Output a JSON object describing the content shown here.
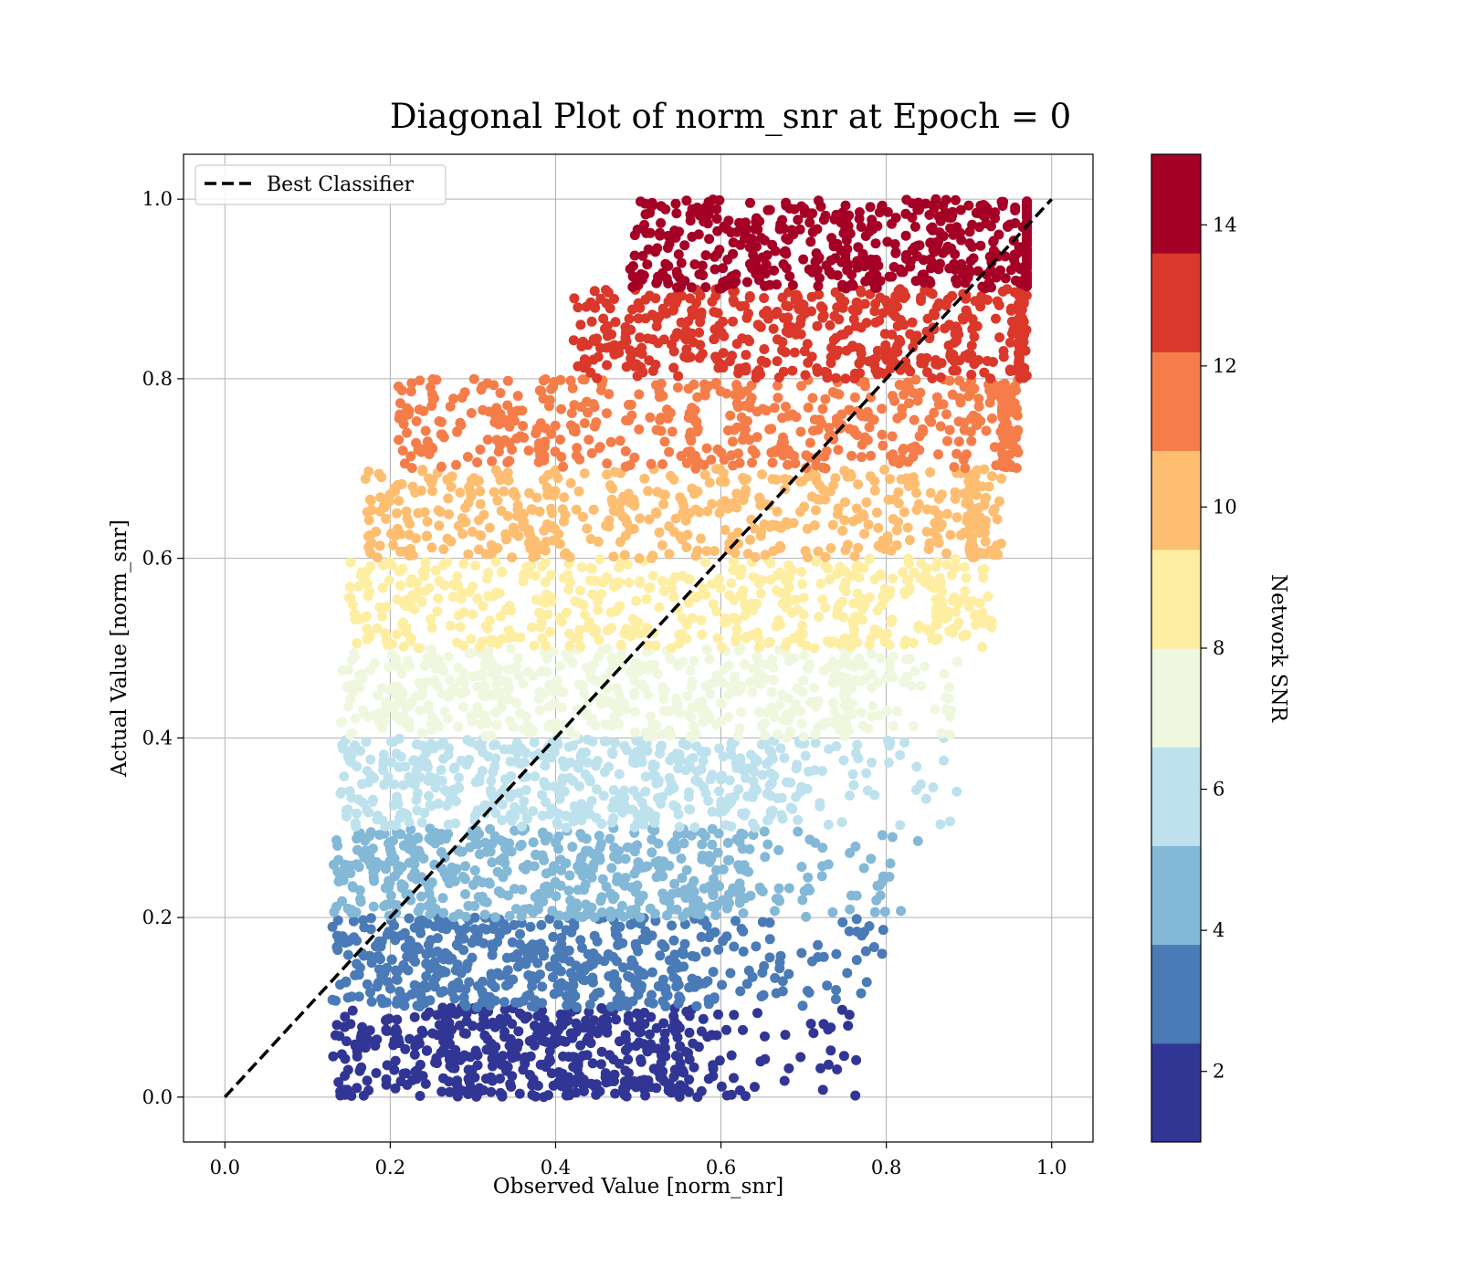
{
  "chart_data": {
    "type": "scatter",
    "title": "Diagonal Plot of norm_snr at Epoch = 0",
    "xlabel": "Observed Value [norm_snr]",
    "ylabel": "Actual Value [norm_snr]",
    "xlim": [
      -0.05,
      1.05
    ],
    "ylim": [
      -0.05,
      1.05
    ],
    "xticks": [
      "0.0",
      "0.2",
      "0.4",
      "0.6",
      "0.8",
      "1.0"
    ],
    "yticks": [
      "0.0",
      "0.2",
      "0.4",
      "0.6",
      "0.8",
      "1.0"
    ],
    "grid": true,
    "legend": {
      "position": "top-left",
      "entries": [
        {
          "label": "Best Classifier",
          "style": "black dashed line"
        }
      ]
    },
    "reference_line": {
      "label": "Best Classifier",
      "x": [
        0.0,
        1.0
      ],
      "y": [
        0.0,
        1.0
      ],
      "color": "#000000",
      "dash": "dashed"
    },
    "colorbar": {
      "label": "Network SNR",
      "range": [
        1,
        15
      ],
      "ticks": [
        "2",
        "4",
        "6",
        "8",
        "10",
        "12",
        "14"
      ],
      "colormap": "RdYlBu_r (10 levels)",
      "colors": [
        "#313695",
        "#4a7bb7",
        "#84b8d7",
        "#bee2ed",
        "#eff7de",
        "#fdeea2",
        "#fdbe71",
        "#f57d4a",
        "#da382b",
        "#a50026"
      ]
    },
    "series_summary": [
      {
        "snr_band": "1-2.4",
        "color": "#313695",
        "actual_range": [
          0.0,
          0.1
        ],
        "observed_core": [
          0.16,
          0.55
        ],
        "observed_scatter_max": 0.77
      },
      {
        "snr_band": "2.4-3.8",
        "color": "#4a7bb7",
        "actual_range": [
          0.1,
          0.2
        ],
        "observed_core": [
          0.16,
          0.58
        ],
        "observed_scatter_max": 0.81
      },
      {
        "snr_band": "3.8-5.2",
        "color": "#84b8d7",
        "actual_range": [
          0.2,
          0.3
        ],
        "observed_core": [
          0.16,
          0.62
        ],
        "observed_scatter_max": 0.84
      },
      {
        "snr_band": "5.2-6.6",
        "color": "#bee2ed",
        "actual_range": [
          0.3,
          0.4
        ],
        "observed_core": [
          0.17,
          0.66
        ],
        "observed_scatter_max": 0.9
      },
      {
        "snr_band": "6.6-8.0",
        "color": "#eff7de",
        "actual_range": [
          0.4,
          0.5
        ],
        "observed_core": [
          0.17,
          0.75
        ],
        "observed_scatter_max": 0.89
      },
      {
        "snr_band": "8.0-9.4",
        "color": "#fdeea2",
        "actual_range": [
          0.5,
          0.6
        ],
        "observed_core": [
          0.18,
          0.86
        ],
        "observed_scatter_max": 0.93
      },
      {
        "snr_band": "9.4-10.8",
        "color": "#fdbe71",
        "actual_range": [
          0.6,
          0.7
        ],
        "observed_core": [
          0.2,
          0.9
        ],
        "observed_scatter_max": 0.94
      },
      {
        "snr_band": "10.8-12.2",
        "color": "#f57d4a",
        "actual_range": [
          0.7,
          0.8
        ],
        "observed_core": [
          0.24,
          0.94
        ],
        "observed_scatter_max": 0.96
      },
      {
        "snr_band": "12.2-13.6",
        "color": "#da382b",
        "actual_range": [
          0.8,
          0.9
        ],
        "observed_core": [
          0.45,
          0.96
        ],
        "observed_scatter_max": 0.97
      },
      {
        "snr_band": "13.6-15",
        "color": "#a50026",
        "actual_range": [
          0.9,
          1.0
        ],
        "observed_core": [
          0.52,
          0.97
        ],
        "observed_scatter_max": 0.97
      }
    ]
  }
}
